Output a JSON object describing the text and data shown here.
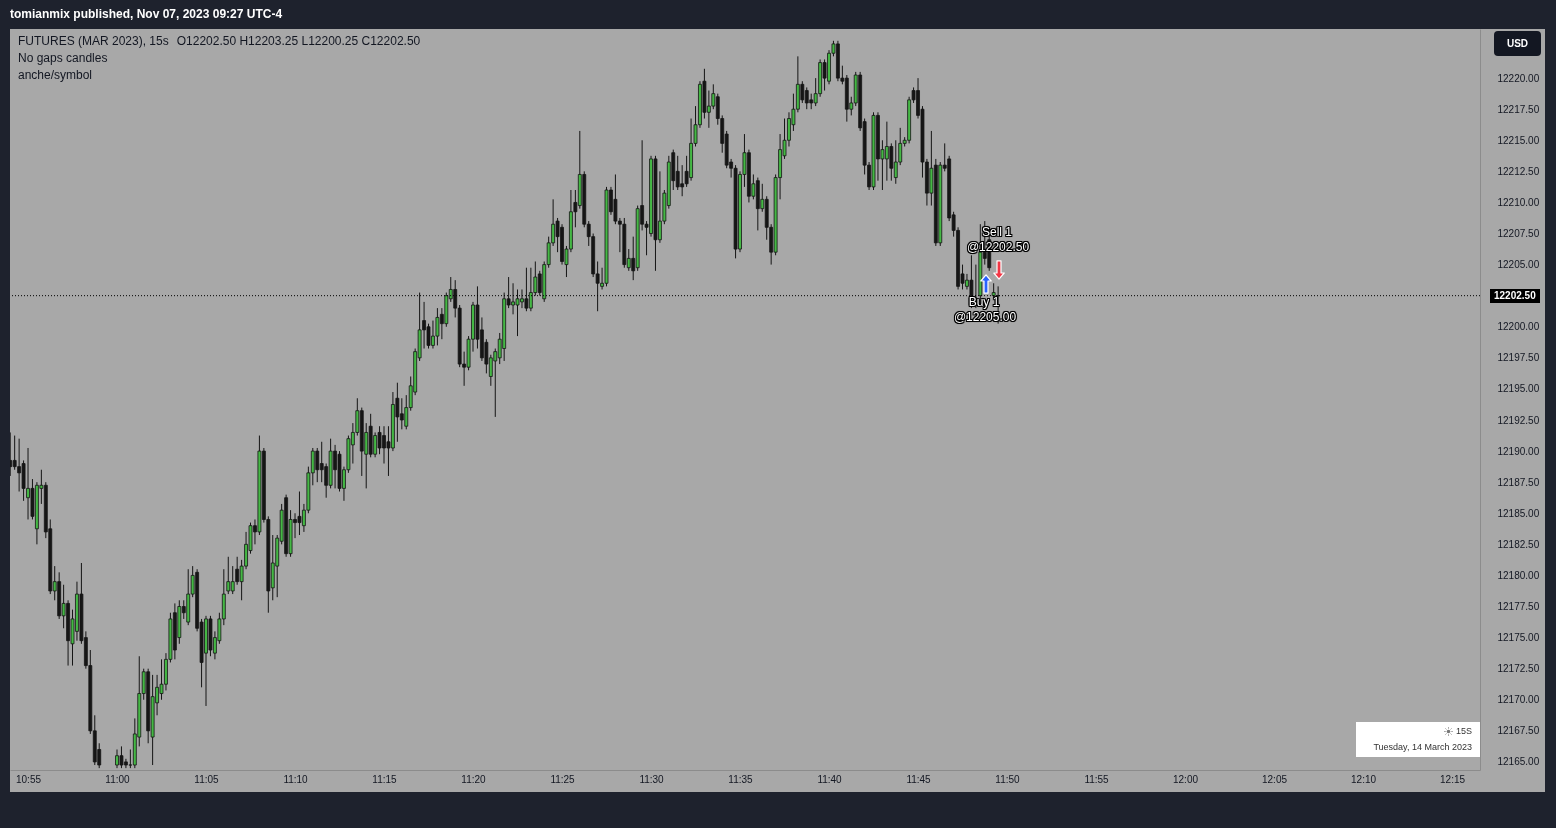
{
  "chart_data": {
    "type": "candlestick",
    "title": "FUTURES (MAR 2023), 15s",
    "subtitle": "O12202.50 H12203.25 L12200.25 C12202.50",
    "x": [
      10.9,
      10.90417,
      10.90833,
      10.9125,
      10.91667,
      10.92083,
      10.925,
      10.92917,
      10.93333,
      10.9375,
      10.94167,
      10.94583,
      10.95,
      10.95417,
      10.95833,
      10.9625,
      10.96667,
      10.97083,
      10.975,
      10.97917,
      10.98333,
      11.0,
      11.00417,
      11.00833,
      11.0125,
      11.01667,
      11.02083,
      11.025,
      11.02917,
      11.03333,
      11.0375,
      11.04167,
      11.04583,
      11.05,
      11.05417,
      11.05833,
      11.0625,
      11.06667,
      11.07083,
      11.075,
      11.07917,
      11.08333,
      11.0875,
      11.09167,
      11.09583,
      11.1,
      11.10417,
      11.10833,
      11.1125,
      11.11667,
      11.12083,
      11.125,
      11.12917,
      11.13333,
      11.1375,
      11.14167,
      11.14583,
      11.15,
      11.15417,
      11.15833,
      11.1625,
      11.16667,
      11.17083,
      11.175,
      11.17917,
      11.18333,
      11.1875,
      11.19167,
      11.19583,
      11.2,
      11.20417,
      11.20833,
      11.2125,
      11.21667,
      11.22083,
      11.225,
      11.22917,
      11.23333,
      11.2375,
      11.24167,
      11.24583,
      11.25,
      11.25417,
      11.25833,
      11.2625,
      11.26667,
      11.27083,
      11.275,
      11.27917,
      11.28333,
      11.2875,
      11.29167,
      11.29583,
      11.3,
      11.30417,
      11.30833,
      11.3125,
      11.31667,
      11.32083,
      11.325,
      11.32917,
      11.33333,
      11.3375,
      11.34167,
      11.34583,
      11.35,
      11.35417,
      11.35833,
      11.3625,
      11.36667,
      11.37083,
      11.375,
      11.37917,
      11.38333,
      11.3875,
      11.39167,
      11.39583,
      11.4,
      11.40417,
      11.40833,
      11.4125,
      11.41667,
      11.42083,
      11.425,
      11.42917,
      11.43333,
      11.4375,
      11.44167,
      11.44583,
      11.45,
      11.45417,
      11.45833,
      11.4625,
      11.46667,
      11.47083,
      11.475,
      11.47917,
      11.48333,
      11.4875,
      11.49167,
      11.49583,
      11.5,
      11.50417,
      11.50833,
      11.5125,
      11.51667,
      11.52083,
      11.525,
      11.52917,
      11.53333,
      11.5375,
      11.54167,
      11.54583,
      11.55,
      11.55417,
      11.55833,
      11.5625,
      11.56667,
      11.57083,
      11.575,
      11.57917,
      11.58333,
      11.5875,
      11.59167,
      11.59583,
      11.6,
      11.60417,
      11.60833,
      11.6125,
      11.61667,
      11.62083,
      11.625,
      11.62917,
      11.63333,
      11.6375,
      11.64167,
      11.64583,
      11.65,
      11.65417,
      11.65833,
      11.6625,
      11.66667,
      11.67083,
      11.675,
      11.67917,
      11.68333,
      11.6875,
      11.69167,
      11.69583,
      11.7,
      11.70417,
      11.70833,
      11.7125,
      11.71667,
      11.72083,
      11.725,
      11.72917,
      11.73333,
      11.7375,
      11.74167,
      11.74583,
      11.75,
      11.75417,
      11.75833,
      11.7625,
      11.76667,
      11.77083,
      11.775,
      11.77917,
      11.78333,
      11.7875,
      11.79167,
      11.79583,
      11.8,
      11.80417,
      11.80833,
      11.8125,
      11.81667,
      11.82083,
      11.825
    ],
    "ohlc": [
      [
        12189.25,
        12191.5,
        12188,
        12188.75
      ],
      [
        12189.25,
        12191.25,
        12188.5,
        12188.75
      ],
      [
        12188.75,
        12191,
        12186.75,
        12188.25
      ],
      [
        12189,
        12189.25,
        12186,
        12187
      ],
      [
        12186.25,
        12190.25,
        12184.5,
        12187
      ],
      [
        12187,
        12187.75,
        12184.5,
        12184.75
      ],
      [
        12183.75,
        12187.5,
        12182.5,
        12187.25
      ],
      [
        12187,
        12188.5,
        12185.75,
        12187.25
      ],
      [
        12187.25,
        12187.5,
        12183,
        12183.5
      ],
      [
        12183.75,
        12184.5,
        12178.5,
        12178.75
      ],
      [
        12178.75,
        12180.75,
        12178,
        12179.5
      ],
      [
        12179.5,
        12180.25,
        12176.5,
        12176.75
      ],
      [
        12176.75,
        12179.25,
        12175.75,
        12177.75
      ],
      [
        12177.75,
        12178,
        12172.75,
        12174.75
      ],
      [
        12174.5,
        12177.25,
        12172.75,
        12176.5
      ],
      [
        12175.5,
        12179.5,
        12174.75,
        12178.5
      ],
      [
        12178.5,
        12181,
        12174.5,
        12174.75
      ],
      [
        12175,
        12175.5,
        12172.5,
        12172.75
      ],
      [
        12172.75,
        12174,
        12167.25,
        12167.5
      ],
      [
        12167.5,
        12168.75,
        12164.75,
        12165
      ],
      [
        12166,
        12166.5,
        12164.5,
        12164.75
      ],
      [
        12164.75,
        12166,
        12164.5,
        12165.5
      ],
      [
        12165.5,
        12166.25,
        12164.5,
        12164.75
      ],
      [
        12165,
        12165.25,
        12164.5,
        12164.75
      ],
      [
        12164.75,
        12166,
        12164.5,
        12164.75
      ],
      [
        12164.75,
        12168.5,
        12164.5,
        12167.25
      ],
      [
        12167,
        12173.5,
        12166.25,
        12170.5
      ],
      [
        12170.5,
        12172.5,
        12170,
        12172.25
      ],
      [
        12172.25,
        12172.5,
        12166.5,
        12167.5
      ],
      [
        12167,
        12172,
        12164.75,
        12170.25
      ],
      [
        12169.75,
        12172,
        12168.75,
        12171
      ],
      [
        12170.5,
        12173.25,
        12170,
        12171.25
      ],
      [
        12171.25,
        12173.75,
        12170.75,
        12173.25
      ],
      [
        12173.25,
        12177,
        12173,
        12176.5
      ],
      [
        12177,
        12177.75,
        12173.25,
        12174
      ],
      [
        12175,
        12178,
        12174.5,
        12177.5
      ],
      [
        12177.5,
        12178,
        12176.5,
        12177
      ],
      [
        12176.25,
        12180.5,
        12176,
        12178.5
      ],
      [
        12178.5,
        12180.75,
        12178.25,
        12180
      ],
      [
        12180.25,
        12180.5,
        12175.5,
        12175.75
      ],
      [
        12176.25,
        12176.5,
        12171,
        12173
      ],
      [
        12173.75,
        12176.75,
        12169.5,
        12176.5
      ],
      [
        12176.5,
        12176.75,
        12173.5,
        12174
      ],
      [
        12173.75,
        12175.5,
        12173.25,
        12175
      ],
      [
        12174.75,
        12177,
        12174.5,
        12176.5
      ],
      [
        12176.5,
        12180.5,
        12176,
        12178.5
      ],
      [
        12178.75,
        12181.5,
        12178.5,
        12179.5
      ],
      [
        12178.75,
        12180.75,
        12178.5,
        12179.5
      ],
      [
        12180.5,
        12181.5,
        12179.25,
        12179.5
      ],
      [
        12179.5,
        12181.25,
        12178,
        12180.75
      ],
      [
        12180.75,
        12183.5,
        12180.5,
        12182.5
      ],
      [
        12182,
        12184.25,
        12181.75,
        12184
      ],
      [
        12184,
        12184.5,
        12182.5,
        12183.5
      ],
      [
        12183.5,
        12191.25,
        12183.25,
        12190
      ],
      [
        12190,
        12190.25,
        12184.25,
        12184.5
      ],
      [
        12184.5,
        12184.75,
        12177,
        12178.75
      ],
      [
        12179,
        12183.25,
        12178,
        12181
      ],
      [
        12180.75,
        12183.25,
        12178.25,
        12183
      ],
      [
        12182.75,
        12185.75,
        12182.5,
        12185.25
      ],
      [
        12186.25,
        12186.5,
        12181.5,
        12181.75
      ],
      [
        12181.75,
        12185.25,
        12181.5,
        12184.5
      ],
      [
        12184.5,
        12185,
        12183,
        12184.25
      ],
      [
        12184.75,
        12186.75,
        12183.25,
        12184.25
      ],
      [
        12184,
        12185.75,
        12183.5,
        12185.25
      ],
      [
        12185.25,
        12188.75,
        12185,
        12188.25
      ],
      [
        12188.25,
        12190.25,
        12187.25,
        12190
      ],
      [
        12190,
        12190.25,
        12187.5,
        12188.5
      ],
      [
        12189,
        12190.75,
        12187.5,
        12188.5
      ],
      [
        12188.75,
        12189,
        12186.25,
        12187.25
      ],
      [
        12187.25,
        12191,
        12187,
        12190
      ],
      [
        12190,
        12190.5,
        12187,
        12188.5
      ],
      [
        12189.75,
        12190,
        12186.75,
        12187
      ],
      [
        12187,
        12188.75,
        12186,
        12188.5
      ],
      [
        12188.5,
        12191.25,
        12188.25,
        12191
      ],
      [
        12190.5,
        12192.25,
        12189,
        12191.5
      ],
      [
        12191.5,
        12194.25,
        12191.25,
        12193.25
      ],
      [
        12193.25,
        12193.5,
        12188,
        12190
      ],
      [
        12189.75,
        12192.25,
        12187,
        12191.5
      ],
      [
        12192,
        12193,
        12189.5,
        12189.75
      ],
      [
        12189.75,
        12191.5,
        12189.5,
        12191.25
      ],
      [
        12191.5,
        12192,
        12189.75,
        12190.25
      ],
      [
        12191.25,
        12192,
        12189,
        12190.25
      ],
      [
        12190.75,
        12192,
        12188,
        12190.25
      ],
      [
        12190.25,
        12194.75,
        12190,
        12193.75
      ],
      [
        12194.25,
        12195.5,
        12190.75,
        12192.75
      ],
      [
        12193,
        12194.25,
        12191.75,
        12192.5
      ],
      [
        12192,
        12194.5,
        12191.75,
        12193.5
      ],
      [
        12193.5,
        12196,
        12193.25,
        12195.25
      ],
      [
        12194.75,
        12198.25,
        12194.5,
        12198
      ],
      [
        12197.5,
        12202.75,
        12197.25,
        12199.75
      ],
      [
        12200.5,
        12202,
        12198.25,
        12199.75
      ],
      [
        12200,
        12200.25,
        12198.25,
        12198.5
      ],
      [
        12198.5,
        12200.5,
        12198.25,
        12199.25
      ],
      [
        12199.25,
        12201.5,
        12198.5,
        12200.75
      ],
      [
        12201,
        12201.5,
        12199,
        12200.25
      ],
      [
        12200.25,
        12202.75,
        12200,
        12202.5
      ],
      [
        12202.25,
        12204,
        12202,
        12203
      ],
      [
        12203,
        12203.75,
        12200.75,
        12201.5
      ],
      [
        12201.5,
        12201.75,
        12196.75,
        12197
      ],
      [
        12197,
        12198,
        12195.25,
        12196.75
      ],
      [
        12196.75,
        12199.25,
        12196.5,
        12199
      ],
      [
        12199,
        12202,
        12198,
        12201.75
      ],
      [
        12201.75,
        12203.25,
        12198.25,
        12199
      ],
      [
        12199.75,
        12200.75,
        12197.25,
        12197.5
      ],
      [
        12198.75,
        12199,
        12196.25,
        12197
      ],
      [
        12196,
        12197.75,
        12195.25,
        12197.5
      ],
      [
        12197.25,
        12198.25,
        12192.75,
        12198
      ],
      [
        12197.5,
        12199.5,
        12197,
        12199
      ],
      [
        12198.25,
        12202.75,
        12197.25,
        12202.25
      ],
      [
        12202.25,
        12204,
        12201.5,
        12201.75
      ],
      [
        12201.75,
        12203.5,
        12201,
        12202
      ],
      [
        12201.75,
        12203,
        12199.25,
        12202.25
      ],
      [
        12202,
        12203,
        12201.5,
        12202.25
      ],
      [
        12202.25,
        12204.75,
        12201.25,
        12201.5
      ],
      [
        12201.5,
        12204.75,
        12201.25,
        12202.75
      ],
      [
        12202.75,
        12205.25,
        12202.5,
        12204
      ],
      [
        12204.25,
        12204.5,
        12202.5,
        12202.75
      ],
      [
        12202.25,
        12205.25,
        12202,
        12205
      ],
      [
        12205,
        12207.25,
        12204.75,
        12206.75
      ],
      [
        12206.75,
        12210.25,
        12206.5,
        12208.25
      ],
      [
        12208.5,
        12208.75,
        12206,
        12207.25
      ],
      [
        12208,
        12208.25,
        12205,
        12205.25
      ],
      [
        12205,
        12206.5,
        12204,
        12206.25
      ],
      [
        12206.25,
        12211,
        12206,
        12209.25
      ],
      [
        12210,
        12211,
        12208,
        12209.25
      ],
      [
        12209.75,
        12215.75,
        12209.5,
        12212.25
      ],
      [
        12212.25,
        12212.5,
        12208,
        12208.25
      ],
      [
        12208.25,
        12208.5,
        12206.5,
        12207.25
      ],
      [
        12207.25,
        12207.5,
        12204,
        12204.25
      ],
      [
        12204.25,
        12205.25,
        12201.25,
        12203.5
      ],
      [
        12203.25,
        12204.75,
        12203,
        12203.5
      ],
      [
        12203.5,
        12211.25,
        12203.25,
        12211
      ],
      [
        12211,
        12211.25,
        12209,
        12209.25
      ],
      [
        12210.25,
        12212.25,
        12208.25,
        12208.5
      ],
      [
        12208.5,
        12208.75,
        12206,
        12208.25
      ],
      [
        12208.25,
        12208.75,
        12204.75,
        12205
      ],
      [
        12204.75,
        12206.25,
        12204.5,
        12205.5
      ],
      [
        12205.5,
        12207.25,
        12203.75,
        12204.5
      ],
      [
        12204.75,
        12209.75,
        12204.5,
        12209.5
      ],
      [
        12209.75,
        12215,
        12207.75,
        12208.25
      ],
      [
        12208.25,
        12208.5,
        12205.75,
        12208
      ],
      [
        12207.5,
        12213.75,
        12207.25,
        12213.5
      ],
      [
        12213.5,
        12213.75,
        12204.5,
        12207
      ],
      [
        12207,
        12212.5,
        12206.75,
        12208.5
      ],
      [
        12208.5,
        12211,
        12208.25,
        12210.75
      ],
      [
        12209.75,
        12213.75,
        12209.5,
        12213.25
      ],
      [
        12214,
        12214.25,
        12211,
        12211.75
      ],
      [
        12212.5,
        12213.75,
        12211,
        12211.25
      ],
      [
        12211.5,
        12213,
        12210.5,
        12211.25
      ],
      [
        12212.5,
        12213.75,
        12211.25,
        12211.5
      ],
      [
        12212,
        12216.75,
        12211.75,
        12214.75
      ],
      [
        12214.75,
        12217.75,
        12214.5,
        12216.25
      ],
      [
        12216.25,
        12219.75,
        12216,
        12219.5
      ],
      [
        12219.75,
        12220.75,
        12216.75,
        12217.25
      ],
      [
        12217.25,
        12219,
        12216,
        12217.75
      ],
      [
        12217.75,
        12219.5,
        12217.5,
        12218.75
      ],
      [
        12218.5,
        12218.75,
        12216.25,
        12216.75
      ],
      [
        12216.75,
        12217,
        12214,
        12214.75
      ],
      [
        12215.5,
        12215.75,
        12212.75,
        12213
      ],
      [
        12213.25,
        12213.5,
        12212,
        12212.75
      ],
      [
        12212.75,
        12213,
        12205.5,
        12206.25
      ],
      [
        12206.25,
        12212.5,
        12206,
        12212.25
      ],
      [
        12212.25,
        12215.5,
        12211.25,
        12214
      ],
      [
        12214,
        12214.25,
        12210,
        12210.5
      ],
      [
        12210.5,
        12212.25,
        12210.25,
        12211.5
      ],
      [
        12211.75,
        12212,
        12207.75,
        12209.5
      ],
      [
        12209.5,
        12211.5,
        12209.25,
        12210.25
      ],
      [
        12210.25,
        12210.5,
        12207,
        12208
      ],
      [
        12208,
        12208.25,
        12205,
        12206
      ],
      [
        12206,
        12212.25,
        12205.75,
        12212
      ],
      [
        12212,
        12215.5,
        12210.25,
        12214.25
      ],
      [
        12213.75,
        12216.75,
        12213.5,
        12215
      ],
      [
        12215,
        12217.25,
        12214.5,
        12216.75
      ],
      [
        12216.25,
        12218.75,
        12215.75,
        12217.5
      ],
      [
        12217.5,
        12221.75,
        12217.25,
        12219.5
      ],
      [
        12219.5,
        12219.75,
        12218,
        12218.25
      ],
      [
        12219,
        12219.25,
        12217.5,
        12218
      ],
      [
        12218.25,
        12218.75,
        12217.5,
        12218
      ],
      [
        12218,
        12220,
        12217.75,
        12218.75
      ],
      [
        12218.75,
        12221.5,
        12218.5,
        12221.25
      ],
      [
        12221.25,
        12221.5,
        12219,
        12220
      ],
      [
        12219.75,
        12222.25,
        12219.5,
        12222
      ],
      [
        12222,
        12223,
        12221.75,
        12222.75
      ],
      [
        12222.75,
        12223,
        12219.75,
        12220
      ],
      [
        12220,
        12221,
        12219.5,
        12219.75
      ],
      [
        12220,
        12220.25,
        12216.5,
        12217.5
      ],
      [
        12217.5,
        12218.5,
        12217,
        12218
      ],
      [
        12218,
        12220.5,
        12217.75,
        12220.25
      ],
      [
        12220.25,
        12220.5,
        12215.75,
        12216
      ],
      [
        12216.5,
        12216.75,
        12212.25,
        12213
      ],
      [
        12213,
        12213.25,
        12211,
        12211.25
      ],
      [
        12211.25,
        12217.25,
        12211,
        12217
      ],
      [
        12217,
        12217.25,
        12211.75,
        12213.5
      ],
      [
        12213.5,
        12215,
        12211,
        12214.25
      ],
      [
        12213.5,
        12216.5,
        12211.75,
        12214.5
      ],
      [
        12214.5,
        12214.75,
        12211.75,
        12212.75
      ],
      [
        12212,
        12215,
        12211.5,
        12213.25
      ],
      [
        12213.25,
        12216,
        12213,
        12214.75
      ],
      [
        12214.75,
        12215.25,
        12214.5,
        12215
      ],
      [
        12215,
        12218.5,
        12214.75,
        12218.25
      ],
      [
        12219,
        12219.25,
        12218,
        12218.25
      ],
      [
        12219,
        12220,
        12216.75,
        12217
      ],
      [
        12217.5,
        12217.75,
        12212,
        12213.25
      ],
      [
        12213.25,
        12213.5,
        12209.75,
        12210.75
      ],
      [
        12210.75,
        12215.75,
        12209.75,
        12212.75
      ],
      [
        12213,
        12213.5,
        12206.5,
        12206.75
      ],
      [
        12206.75,
        12213.25,
        12206.5,
        12213
      ],
      [
        12213,
        12214.75,
        12212.5,
        12212.75
      ],
      [
        12213.5,
        12213.75,
        12208.5,
        12208.75
      ],
      [
        12209,
        12209.25,
        12207.25,
        12207.75
      ],
      [
        12207.75,
        12208,
        12203,
        12203.25
      ],
      [
        12204.25,
        12205,
        12203,
        12203.5
      ],
      [
        12203.25,
        12204.25,
        12203,
        12203.75
      ],
      [
        12203.75,
        12205.75,
        12201.5,
        12202.5
      ],
      [
        12201.75,
        12205,
        12201.5,
        12202.25
      ],
      [
        12202.5,
        12208.25,
        12202.25,
        12206
      ],
      [
        12206,
        12208.5,
        12205,
        12205.5
      ],
      [
        12207,
        12207.75,
        12204.5,
        12204.75
      ],
      [
        12202.5,
        12203.5,
        12202.25,
        12202.75
      ],
      [
        12202.5,
        12203.25,
        12200.25,
        12202.5
      ]
    ],
    "colors": [
      "#161616",
      "#161616",
      "#161616",
      "#161616",
      "#45b845",
      "#161616",
      "#45b845",
      "#45b845",
      "#161616",
      "#161616",
      "#45b845",
      "#161616",
      "#45b845",
      "#161616",
      "#45b845",
      "#45b845",
      "#161616",
      "#161616",
      "#161616",
      "#161616",
      "#161616",
      "#45b845",
      "#161616",
      "#161616",
      "#161616",
      "#45b845",
      "#45b845",
      "#45b845",
      "#161616",
      "#45b845",
      "#45b845",
      "#45b845",
      "#45b845",
      "#45b845",
      "#161616",
      "#45b845",
      "#161616",
      "#45b845",
      "#45b845",
      "#161616",
      "#161616",
      "#45b845",
      "#161616",
      "#45b845",
      "#45b845",
      "#45b845",
      "#45b845",
      "#45b845",
      "#161616",
      "#45b845",
      "#45b845",
      "#45b845",
      "#161616",
      "#45b845",
      "#161616",
      "#161616",
      "#45b845",
      "#45b845",
      "#45b845",
      "#161616",
      "#45b845",
      "#161616",
      "#161616",
      "#45b845",
      "#45b845",
      "#45b845",
      "#161616",
      "#161616",
      "#161616",
      "#45b845",
      "#161616",
      "#161616",
      "#45b845",
      "#45b845",
      "#45b845",
      "#45b845",
      "#161616",
      "#45b845",
      "#161616",
      "#45b845",
      "#161616",
      "#161616",
      "#161616",
      "#45b845",
      "#161616",
      "#161616",
      "#45b845",
      "#45b845",
      "#45b845",
      "#45b845",
      "#161616",
      "#161616",
      "#45b845",
      "#45b845",
      "#161616",
      "#45b845",
      "#45b845",
      "#161616",
      "#161616",
      "#161616",
      "#45b845",
      "#45b845",
      "#161616",
      "#161616",
      "#161616",
      "#45b845",
      "#45b845",
      "#45b845",
      "#45b845",
      "#161616",
      "#45b845",
      "#45b845",
      "#45b845",
      "#161616",
      "#45b845",
      "#45b845",
      "#161616",
      "#45b845",
      "#45b845",
      "#45b845",
      "#161616",
      "#161616",
      "#45b845",
      "#45b845",
      "#161616",
      "#45b845",
      "#161616",
      "#161616",
      "#161616",
      "#161616",
      "#45b845",
      "#45b845",
      "#161616",
      "#161616",
      "#161616",
      "#161616",
      "#45b845",
      "#161616",
      "#45b845",
      "#161616",
      "#161616",
      "#45b845",
      "#161616",
      "#45b845",
      "#45b845",
      "#45b845",
      "#161616",
      "#161616",
      "#161616",
      "#161616",
      "#45b845",
      "#45b845",
      "#45b845",
      "#161616",
      "#45b845",
      "#45b845",
      "#161616",
      "#161616",
      "#161616",
      "#161616",
      "#161616",
      "#45b845",
      "#45b845",
      "#161616",
      "#45b845",
      "#161616",
      "#45b845",
      "#161616",
      "#161616",
      "#45b845",
      "#45b845",
      "#45b845",
      "#45b845",
      "#45b845",
      "#45b845",
      "#161616",
      "#161616",
      "#161616",
      "#45b845",
      "#45b845",
      "#161616",
      "#45b845",
      "#45b845",
      "#161616",
      "#161616",
      "#161616",
      "#45b845",
      "#45b845",
      "#161616",
      "#161616",
      "#161616",
      "#45b845",
      "#161616",
      "#45b845",
      "#45b845",
      "#161616",
      "#45b845",
      "#45b845",
      "#45b845",
      "#45b845",
      "#161616",
      "#161616",
      "#161616",
      "#161616",
      "#45b845",
      "#161616",
      "#45b845",
      "#161616",
      "#161616",
      "#161616",
      "#161616",
      "#161616",
      "#45b845",
      "#161616",
      "#45b845",
      "#45b845",
      "#161616",
      "#161616",
      "#45b845",
      "#161616"
    ],
    "xlim": [
      10.8998,
      12.2762
    ],
    "xticks": [
      {
        "value": 10.91667,
        "label": "10:55"
      },
      {
        "value": 11,
        "label": "11:00"
      },
      {
        "value": 11.08333,
        "label": "11:05"
      },
      {
        "value": 11.16667,
        "label": "11:10"
      },
      {
        "value": 11.25,
        "label": "11:15"
      },
      {
        "value": 11.33333,
        "label": "11:20"
      },
      {
        "value": 11.41667,
        "label": "11:25"
      },
      {
        "value": 11.5,
        "label": "11:30"
      },
      {
        "value": 11.58333,
        "label": "11:35"
      },
      {
        "value": 11.66667,
        "label": "11:40"
      },
      {
        "value": 11.75,
        "label": "11:45"
      },
      {
        "value": 11.83333,
        "label": "11:50"
      },
      {
        "value": 11.91667,
        "label": "11:55"
      },
      {
        "value": 12,
        "label": "12:00"
      },
      {
        "value": 12.08333,
        "label": "12:05"
      },
      {
        "value": 12.16667,
        "label": "12:10"
      },
      {
        "value": 12.25,
        "label": "12:15"
      }
    ],
    "ylim": [
      12164.35,
      12223.95
    ],
    "yticks": [
      {
        "value": 12165,
        "label": "12165.00"
      },
      {
        "value": 12167.5,
        "label": "12167.50"
      },
      {
        "value": 12170,
        "label": "12170.00"
      },
      {
        "value": 12172.5,
        "label": "12172.50"
      },
      {
        "value": 12175,
        "label": "12175.00"
      },
      {
        "value": 12177.5,
        "label": "12177.50"
      },
      {
        "value": 12180,
        "label": "12180.00"
      },
      {
        "value": 12182.5,
        "label": "12182.50"
      },
      {
        "value": 12185,
        "label": "12185.00"
      },
      {
        "value": 12187.5,
        "label": "12187.50"
      },
      {
        "value": 12190,
        "label": "12190.00"
      },
      {
        "value": 12192.5,
        "label": "12192.50"
      },
      {
        "value": 12195,
        "label": "12195.00"
      },
      {
        "value": 12197.5,
        "label": "12197.50"
      },
      {
        "value": 12200,
        "label": "12200.00"
      },
      {
        "value": 12205,
        "label": "12205.00"
      },
      {
        "value": 12207.5,
        "label": "12207.50"
      },
      {
        "value": 12210,
        "label": "12210.00"
      },
      {
        "value": 12212.5,
        "label": "12212.50"
      },
      {
        "value": 12215,
        "label": "12215.00"
      },
      {
        "value": 12217.5,
        "label": "12217.50"
      },
      {
        "value": 12220,
        "label": "12220.00"
      }
    ],
    "ref_lines": [
      {
        "axis": "y",
        "value": 12202.5,
        "label": "12202.50",
        "color": "#000000",
        "line_style": "dotted"
      }
    ],
    "annotations": [
      "tomianmix published, Nov 07, 2023 09:27 UTC-4",
      "No gaps candles",
      "anche/symbol",
      "Sell 1",
      "@12202.50",
      "Buy 1",
      "@12205.00",
      "USD",
      "15S",
      "Tuesday, 14 March 2023"
    ]
  }
}
